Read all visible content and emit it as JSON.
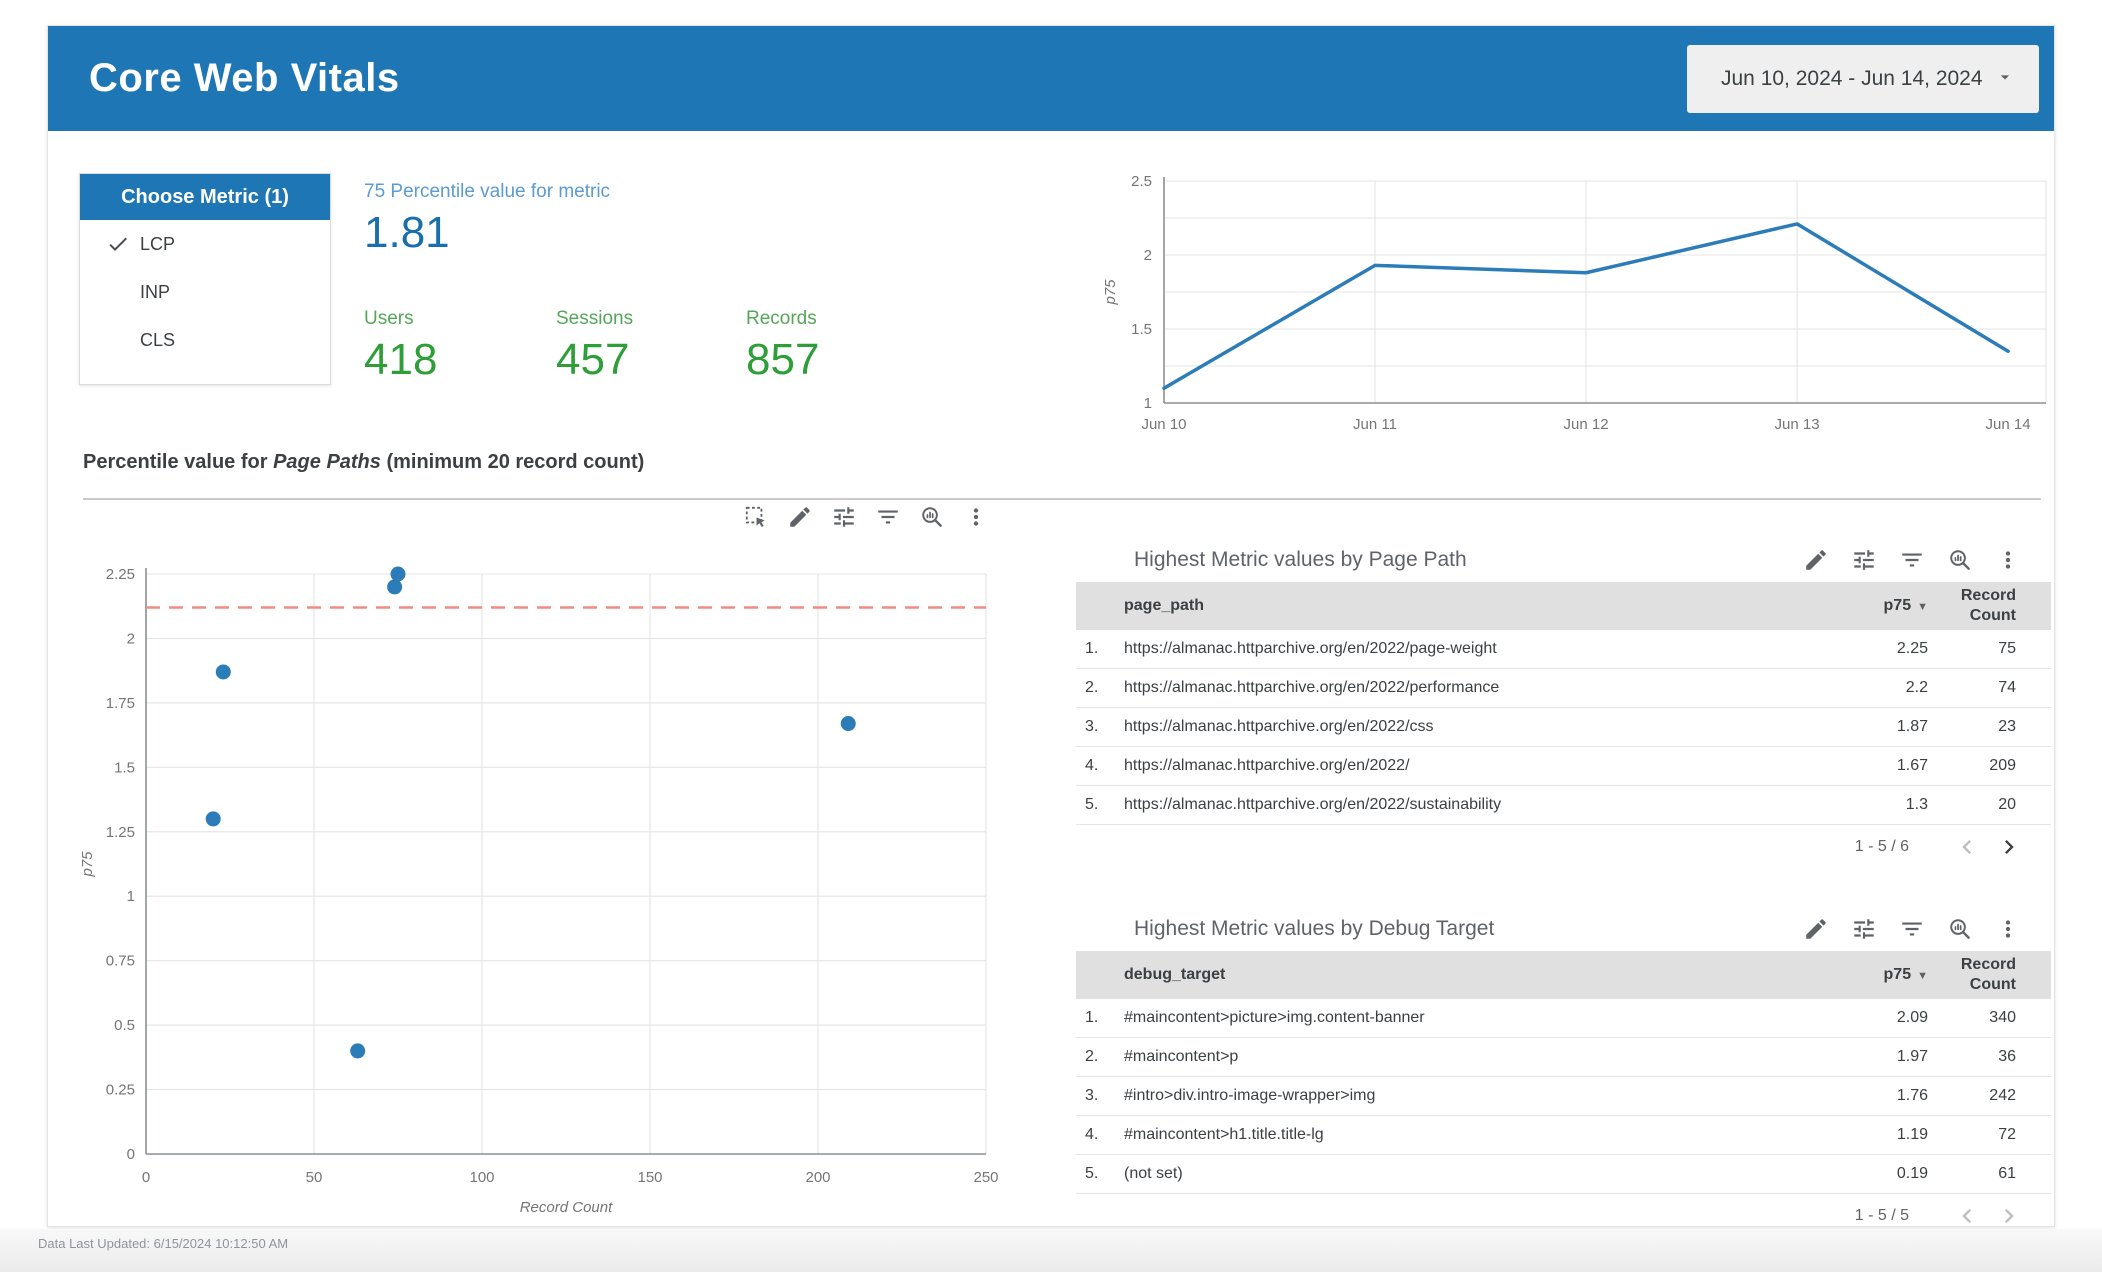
{
  "header": {
    "title": "Core Web Vitals",
    "date_range": "Jun 10, 2024 - Jun 14, 2024"
  },
  "metric_filter": {
    "title": "Choose Metric (1)",
    "items": [
      {
        "label": "LCP",
        "selected": true
      },
      {
        "label": "INP",
        "selected": false
      },
      {
        "label": "CLS",
        "selected": false
      }
    ]
  },
  "scorecards": [
    {
      "label": "75 Percentile value for metric",
      "value": "1.81",
      "style": "blue"
    },
    {
      "label": "Users",
      "value": "418",
      "style": "green"
    },
    {
      "label": "Sessions",
      "value": "457",
      "style": "green"
    },
    {
      "label": "Records",
      "value": "857",
      "style": "green"
    }
  ],
  "section": {
    "prefix": "Percentile value for ",
    "italic": "Page Paths",
    "suffix": " (minimum 20 record count)"
  },
  "scatter_toolbar_icons": [
    "marquee-select",
    "edit",
    "tune",
    "filter",
    "zoom-explore",
    "more-vert"
  ],
  "tables": [
    {
      "id": "page-path",
      "title": "Highest Metric values by Page Path",
      "icons": [
        "edit",
        "tune",
        "filter",
        "zoom-explore",
        "more-vert"
      ],
      "key_column": "page_path",
      "value_column": "p75",
      "sort_indicator": "▼",
      "count_column": "Record Count",
      "rows": [
        {
          "index": "1.",
          "key": "https://almanac.httparchive.org/en/2022/page-weight",
          "value": "2.25",
          "count": "75"
        },
        {
          "index": "2.",
          "key": "https://almanac.httparchive.org/en/2022/performance",
          "value": "2.2",
          "count": "74"
        },
        {
          "index": "3.",
          "key": "https://almanac.httparchive.org/en/2022/css",
          "value": "1.87",
          "count": "23"
        },
        {
          "index": "4.",
          "key": "https://almanac.httparchive.org/en/2022/",
          "value": "1.67",
          "count": "209"
        },
        {
          "index": "5.",
          "key": "https://almanac.httparchive.org/en/2022/sustainability",
          "value": "1.3",
          "count": "20"
        }
      ],
      "pagination": {
        "label": "1 - 5 / 6",
        "prev_enabled": false,
        "next_enabled": true
      }
    },
    {
      "id": "debug-target",
      "title": "Highest Metric values by Debug Target",
      "icons": [
        "edit",
        "tune",
        "filter",
        "zoom-explore",
        "more-vert"
      ],
      "key_column": "debug_target",
      "value_column": "p75",
      "sort_indicator": "▼",
      "count_column": "Record Count",
      "rows": [
        {
          "index": "1.",
          "key": "#maincontent>picture>img.content-banner",
          "value": "2.09",
          "count": "340"
        },
        {
          "index": "2.",
          "key": "#maincontent>p",
          "value": "1.97",
          "count": "36"
        },
        {
          "index": "3.",
          "key": "#intro>div.intro-image-wrapper>img",
          "value": "1.76",
          "count": "242"
        },
        {
          "index": "4.",
          "key": "#maincontent>h1.title.title-lg",
          "value": "1.19",
          "count": "72"
        },
        {
          "index": "5.",
          "key": "(not set)",
          "value": "0.19",
          "count": "61"
        }
      ],
      "pagination": {
        "label": "1 - 5 / 5",
        "prev_enabled": false,
        "next_enabled": false
      }
    }
  ],
  "chart_data": [
    {
      "type": "line",
      "title": "p75 by date",
      "x": [
        "Jun 10",
        "Jun 11",
        "Jun 12",
        "Jun 13",
        "Jun 14"
      ],
      "series": [
        {
          "name": "p75",
          "values": [
            1.1,
            1.93,
            1.88,
            2.21,
            1.35
          ]
        }
      ],
      "ylabel": "p75",
      "ylim": [
        1,
        2.5
      ],
      "ygrid_step": 0.25,
      "ytick_values": [
        1,
        1.5,
        2,
        2.5
      ],
      "ytick_labels": [
        "1",
        "1.5",
        "2",
        "2.5"
      ],
      "grid": true,
      "legend": "none"
    },
    {
      "type": "scatter",
      "xlabel": "Record Count",
      "ylabel": "p75",
      "xlim": [
        0,
        250
      ],
      "ylim": [
        0,
        2.25
      ],
      "xticks": [
        0,
        50,
        100,
        150,
        200,
        250
      ],
      "yticks": [
        0,
        0.25,
        0.5,
        0.75,
        1,
        1.25,
        1.5,
        1.75,
        2,
        2.25
      ],
      "points": [
        {
          "x": 75,
          "y": 2.25
        },
        {
          "x": 74,
          "y": 2.2
        },
        {
          "x": 23,
          "y": 1.87
        },
        {
          "x": 209,
          "y": 1.67
        },
        {
          "x": 20,
          "y": 1.3
        },
        {
          "x": 63,
          "y": 0.4
        }
      ],
      "reference_line": {
        "y": 2.12,
        "style": "dashed"
      },
      "grid": true
    }
  ],
  "footer": {
    "text": "Data Last Updated: 6/15/2024 10:12:50 AM"
  },
  "colors": {
    "banner": "#1e76b4",
    "blue_label": "#5b9bd1",
    "blue_value": "#196fae",
    "green_label": "#55a758",
    "green_value": "#2e9e38",
    "series": "#2b7cb9",
    "reference_red": "#f28b84",
    "grid": "#e4e4e4",
    "axis": "#8a8f94",
    "text": "#3c4043",
    "text_secondary": "#5f6368",
    "table_header_bg": "#e0e0e0"
  }
}
